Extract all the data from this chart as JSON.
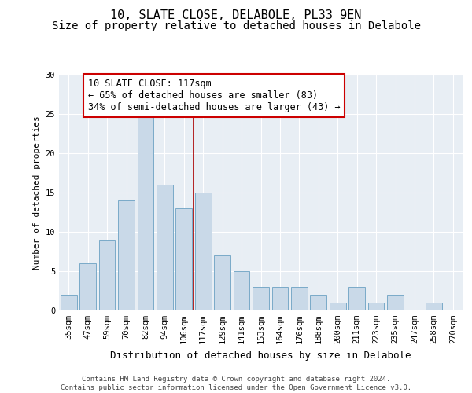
{
  "title": "10, SLATE CLOSE, DELABOLE, PL33 9EN",
  "subtitle": "Size of property relative to detached houses in Delabole",
  "xlabel": "Distribution of detached houses by size in Delabole",
  "ylabel": "Number of detached properties",
  "categories": [
    "35sqm",
    "47sqm",
    "59sqm",
    "70sqm",
    "82sqm",
    "94sqm",
    "106sqm",
    "117sqm",
    "129sqm",
    "141sqm",
    "153sqm",
    "164sqm",
    "176sqm",
    "188sqm",
    "200sqm",
    "211sqm",
    "223sqm",
    "235sqm",
    "247sqm",
    "258sqm",
    "270sqm"
  ],
  "values": [
    2,
    6,
    9,
    14,
    25,
    16,
    13,
    15,
    7,
    5,
    3,
    3,
    3,
    2,
    1,
    3,
    1,
    2,
    0,
    1,
    0
  ],
  "bar_color": "#c9d9e8",
  "bar_edge_color": "#7aaac8",
  "property_line_color": "#aa0000",
  "annotation_text": "10 SLATE CLOSE: 117sqm\n← 65% of detached houses are smaller (83)\n34% of semi-detached houses are larger (43) →",
  "annotation_box_color": "#ffffff",
  "annotation_box_edge_color": "#cc0000",
  "ylim": [
    0,
    30
  ],
  "yticks": [
    0,
    5,
    10,
    15,
    20,
    25,
    30
  ],
  "background_color": "#e8eef4",
  "grid_color": "#ffffff",
  "footer_text": "Contains HM Land Registry data © Crown copyright and database right 2024.\nContains public sector information licensed under the Open Government Licence v3.0.",
  "title_fontsize": 11,
  "subtitle_fontsize": 10,
  "xlabel_fontsize": 9,
  "ylabel_fontsize": 8,
  "tick_fontsize": 7.5,
  "annotation_fontsize": 8.5,
  "footer_fontsize": 6.5
}
